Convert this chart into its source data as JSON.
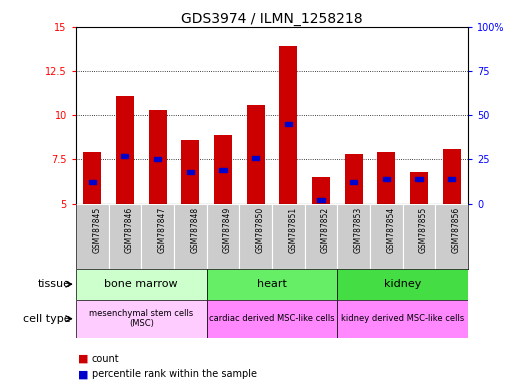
{
  "title": "GDS3974 / ILMN_1258218",
  "samples": [
    "GSM787845",
    "GSM787846",
    "GSM787847",
    "GSM787848",
    "GSM787849",
    "GSM787850",
    "GSM787851",
    "GSM787852",
    "GSM787853",
    "GSM787854",
    "GSM787855",
    "GSM787856"
  ],
  "red_values": [
    7.9,
    11.1,
    10.3,
    8.6,
    8.9,
    10.6,
    13.9,
    6.5,
    7.8,
    7.9,
    6.8,
    8.1
  ],
  "blue_values_pct": [
    12,
    27,
    25,
    18,
    19,
    26,
    45,
    2,
    12,
    14,
    14,
    14
  ],
  "ylim_left": [
    5,
    15
  ],
  "ylim_right": [
    0,
    100
  ],
  "yticks_left": [
    5,
    7.5,
    10,
    12.5,
    15
  ],
  "yticks_right": [
    0,
    25,
    50,
    75,
    100
  ],
  "ytick_labels_left": [
    "5",
    "7.5",
    "10",
    "12.5",
    "15"
  ],
  "ytick_labels_right": [
    "0",
    "25",
    "50",
    "75",
    "100%"
  ],
  "tissue_groups": [
    {
      "label": "bone marrow",
      "start": 0,
      "end": 3,
      "color": "#ccffcc"
    },
    {
      "label": "heart",
      "start": 4,
      "end": 7,
      "color": "#66ee66"
    },
    {
      "label": "kidney",
      "start": 8,
      "end": 11,
      "color": "#44dd44"
    }
  ],
  "cell_type_groups": [
    {
      "label": "mesenchymal stem cells\n(MSC)",
      "start": 0,
      "end": 3,
      "color": "#ffccff"
    },
    {
      "label": "cardiac derived MSC-like cells",
      "start": 4,
      "end": 7,
      "color": "#ff88ff"
    },
    {
      "label": "kidney derived MSC-like cells",
      "start": 8,
      "end": 11,
      "color": "#ff88ff"
    }
  ],
  "bar_width": 0.55,
  "red_color": "#cc0000",
  "blue_color": "#0000cc",
  "background_color": "#ffffff",
  "sample_bg_color": "#cccccc",
  "title_fontsize": 10,
  "tick_fontsize": 7,
  "label_fontsize": 8
}
